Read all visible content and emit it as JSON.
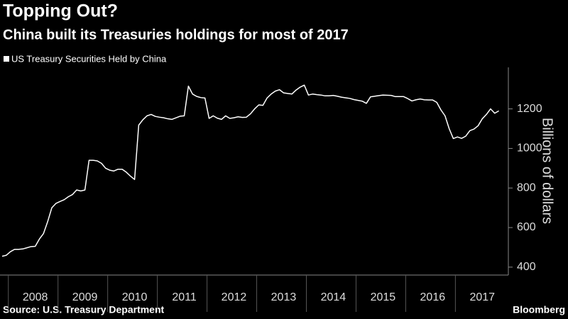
{
  "chart_data": {
    "type": "line",
    "title": "Topping Out?",
    "subtitle": "China built its Treasuries holdings for most of 2017",
    "ylabel": "Billions of dollars",
    "source": "Source: U.S. Treasury Department",
    "brand": "Bloomberg",
    "categories": [
      null,
      null,
      null,
      null,
      null,
      null,
      null,
      null,
      "2008",
      null,
      null,
      null,
      null,
      null,
      null,
      null,
      null,
      null,
      null,
      null,
      "2009",
      null,
      null,
      null,
      null,
      null,
      null,
      null,
      null,
      null,
      null,
      null,
      "2010",
      null,
      null,
      null,
      null,
      null,
      null,
      null,
      null,
      null,
      null,
      null,
      "2011",
      null,
      null,
      null,
      null,
      null,
      null,
      null,
      null,
      null,
      null,
      null,
      "2012",
      null,
      null,
      null,
      null,
      null,
      null,
      null,
      null,
      null,
      null,
      null,
      "2013",
      null,
      null,
      null,
      null,
      null,
      null,
      null,
      null,
      null,
      null,
      null,
      "2014",
      null,
      null,
      null,
      null,
      null,
      null,
      null,
      null,
      null,
      null,
      null,
      "2015",
      null,
      null,
      null,
      null,
      null,
      null,
      null,
      null,
      null,
      null,
      null,
      "2016",
      null,
      null,
      null,
      null,
      null,
      null,
      null,
      null,
      null,
      null,
      null,
      "2017",
      null,
      null,
      null,
      null
    ],
    "series": [
      {
        "name": "US Treasury Securities Held by China",
        "color": "#ffffff",
        "values": [
          455,
          460,
          478,
          490,
          490,
          492,
          498,
          504,
          505,
          542,
          570,
          630,
          700,
          722,
          732,
          741,
          756,
          767,
          790,
          785,
          790,
          940,
          940,
          937,
          925,
          900,
          890,
          886,
          895,
          895,
          880,
          860,
          843,
          1118,
          1145,
          1165,
          1172,
          1162,
          1158,
          1155,
          1150,
          1147,
          1155,
          1163,
          1165,
          1315,
          1275,
          1263,
          1257,
          1255,
          1152,
          1165,
          1153,
          1147,
          1165,
          1152,
          1155,
          1160,
          1157,
          1158,
          1175,
          1200,
          1220,
          1218,
          1255,
          1275,
          1290,
          1297,
          1281,
          1278,
          1275,
          1295,
          1310,
          1320,
          1270,
          1275,
          1272,
          1270,
          1266,
          1266,
          1268,
          1264,
          1259,
          1256,
          1253,
          1247,
          1243,
          1239,
          1228,
          1261,
          1264,
          1267,
          1270,
          1269,
          1268,
          1262,
          1262,
          1262,
          1252,
          1240,
          1246,
          1250,
          1246,
          1245,
          1245,
          1233,
          1195,
          1165,
          1100,
          1050,
          1058,
          1051,
          1062,
          1090,
          1098,
          1115,
          1150,
          1172,
          1200,
          1178,
          1190
        ]
      }
    ],
    "ylim": [
      360,
      1410
    ],
    "yticks": [
      400,
      600,
      800,
      1000,
      1200
    ],
    "y_axis_side": "right"
  }
}
